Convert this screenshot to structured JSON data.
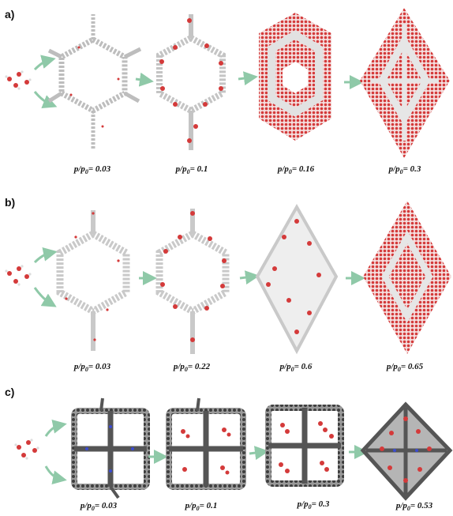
{
  "panels": [
    {
      "label": "a)",
      "captions": [
        {
          "p": "p/p",
          "sub": "0",
          "rest": "= 0.03"
        },
        {
          "p": "p/p",
          "sub": "0",
          "rest": "= 0.1"
        },
        {
          "p": "p/p",
          "sub": "0",
          "rest": "= 0.16"
        },
        {
          "p": "p/p",
          "sub": "0",
          "rest": "= 0.3"
        }
      ]
    },
    {
      "label": "b)",
      "captions": [
        {
          "p": "p/p",
          "sub": "0",
          "rest": "= 0.03"
        },
        {
          "p": "p/p",
          "sub": "0",
          "rest": "= 0.22"
        },
        {
          "p": "p/p",
          "sub": "0",
          "rest": "= 0.6"
        },
        {
          "p": "p/p",
          "sub": "0",
          "rest": "= 0.65"
        }
      ]
    },
    {
      "label": "c)",
      "captions": [
        {
          "p": "p/p",
          "sub": "0",
          "rest": "= 0.03"
        },
        {
          "p": "p/p",
          "sub": "0",
          "rest": "= 0.1"
        },
        {
          "p": "p/p",
          "sub": "0",
          "rest": "= 0.3"
        },
        {
          "p": "p/p",
          "sub": "0",
          "rest": "= 0.53"
        }
      ]
    }
  ],
  "colors": {
    "arrow": "#8fc9a8",
    "water_red": "#d43a3a",
    "framework_light": "#c9c9c9",
    "framework_dark": "#4a4a4a",
    "nitrogen_blue": "#3b4bd1"
  }
}
